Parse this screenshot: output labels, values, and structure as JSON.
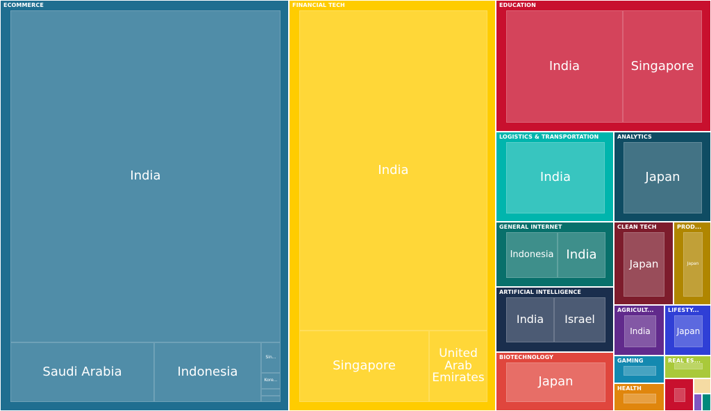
{
  "chart_data": {
    "type": "treemap",
    "categories": [
      {
        "name": "ECOMMERCE",
        "color": "#1f6e90",
        "items": [
          {
            "label": "India",
            "value": 96
          },
          {
            "label": "Saudi Arabia",
            "value": 13
          },
          {
            "label": "Indonesia",
            "value": 9
          },
          {
            "label": "Sin...",
            "value": 1
          },
          {
            "label": "Kore...",
            "value": 1
          },
          {
            "label": "",
            "value": 0.5
          },
          {
            "label": "",
            "value": 0.5
          }
        ]
      },
      {
        "name": "FINANCIAL TECH",
        "color": "#ffcc00",
        "items": [
          {
            "label": "India",
            "value": 68
          },
          {
            "label": "Singapore",
            "value": 8
          },
          {
            "label": "United Arab Emirates",
            "value": 4
          }
        ]
      },
      {
        "name": "EDUCATION",
        "color": "#c8102e",
        "items": [
          {
            "label": "India",
            "value": 10
          },
          {
            "label": "Singapore",
            "value": 7
          }
        ]
      },
      {
        "name": "LOGISTICS & TRANSPORTATION",
        "color": "#00b5ad",
        "items": [
          {
            "label": "India",
            "value": 6
          }
        ]
      },
      {
        "name": "ANALYTICS",
        "color": "#0f4c63",
        "items": [
          {
            "label": "Japan",
            "value": 6
          }
        ]
      },
      {
        "name": "GENERAL INTERNET",
        "color": "#08706b",
        "items": [
          {
            "label": "Indonesia",
            "value": 2
          },
          {
            "label": "India",
            "value": 2
          }
        ]
      },
      {
        "name": "CLEAN TECH",
        "color": "#7d1c2c",
        "items": [
          {
            "label": "Japan",
            "value": 2
          }
        ]
      },
      {
        "name": "PROD...",
        "color": "#b08600",
        "items": [
          {
            "label": "Japan",
            "value": 1
          }
        ]
      },
      {
        "name": "ARTIFICIAL INTELLIGENCE",
        "color": "#1a2e4d",
        "items": [
          {
            "label": "India",
            "value": 2
          },
          {
            "label": "Israel",
            "value": 2
          }
        ]
      },
      {
        "name": "BIOTECHNOLOGY",
        "color": "#e0463d",
        "items": [
          {
            "label": "Japan",
            "value": 3
          }
        ]
      },
      {
        "name": "AGRICULT...",
        "color": "#612a8c",
        "items": [
          {
            "label": "India",
            "value": 1
          }
        ]
      },
      {
        "name": "LIFESTY...",
        "color": "#2f3fd6",
        "items": [
          {
            "label": "Japan",
            "value": 1
          }
        ]
      },
      {
        "name": "GAMING",
        "color": "#1489b0",
        "items": [
          {
            "label": "",
            "value": 0.5
          }
        ]
      },
      {
        "name": "REAL ES...",
        "color": "#a9c93a",
        "items": [
          {
            "label": "",
            "value": 0.5
          }
        ]
      },
      {
        "name": "HEALTH",
        "color": "#e0860d",
        "items": [
          {
            "label": "",
            "value": 0.5
          }
        ]
      },
      {
        "name": "",
        "color": "#c8102e",
        "items": [
          {
            "label": "",
            "value": 0.3
          }
        ]
      },
      {
        "name": "",
        "color": "#f5dba3",
        "items": []
      },
      {
        "name": "",
        "color": "#7e57c2",
        "items": []
      },
      {
        "name": "",
        "color": "#00897b",
        "items": []
      }
    ]
  }
}
